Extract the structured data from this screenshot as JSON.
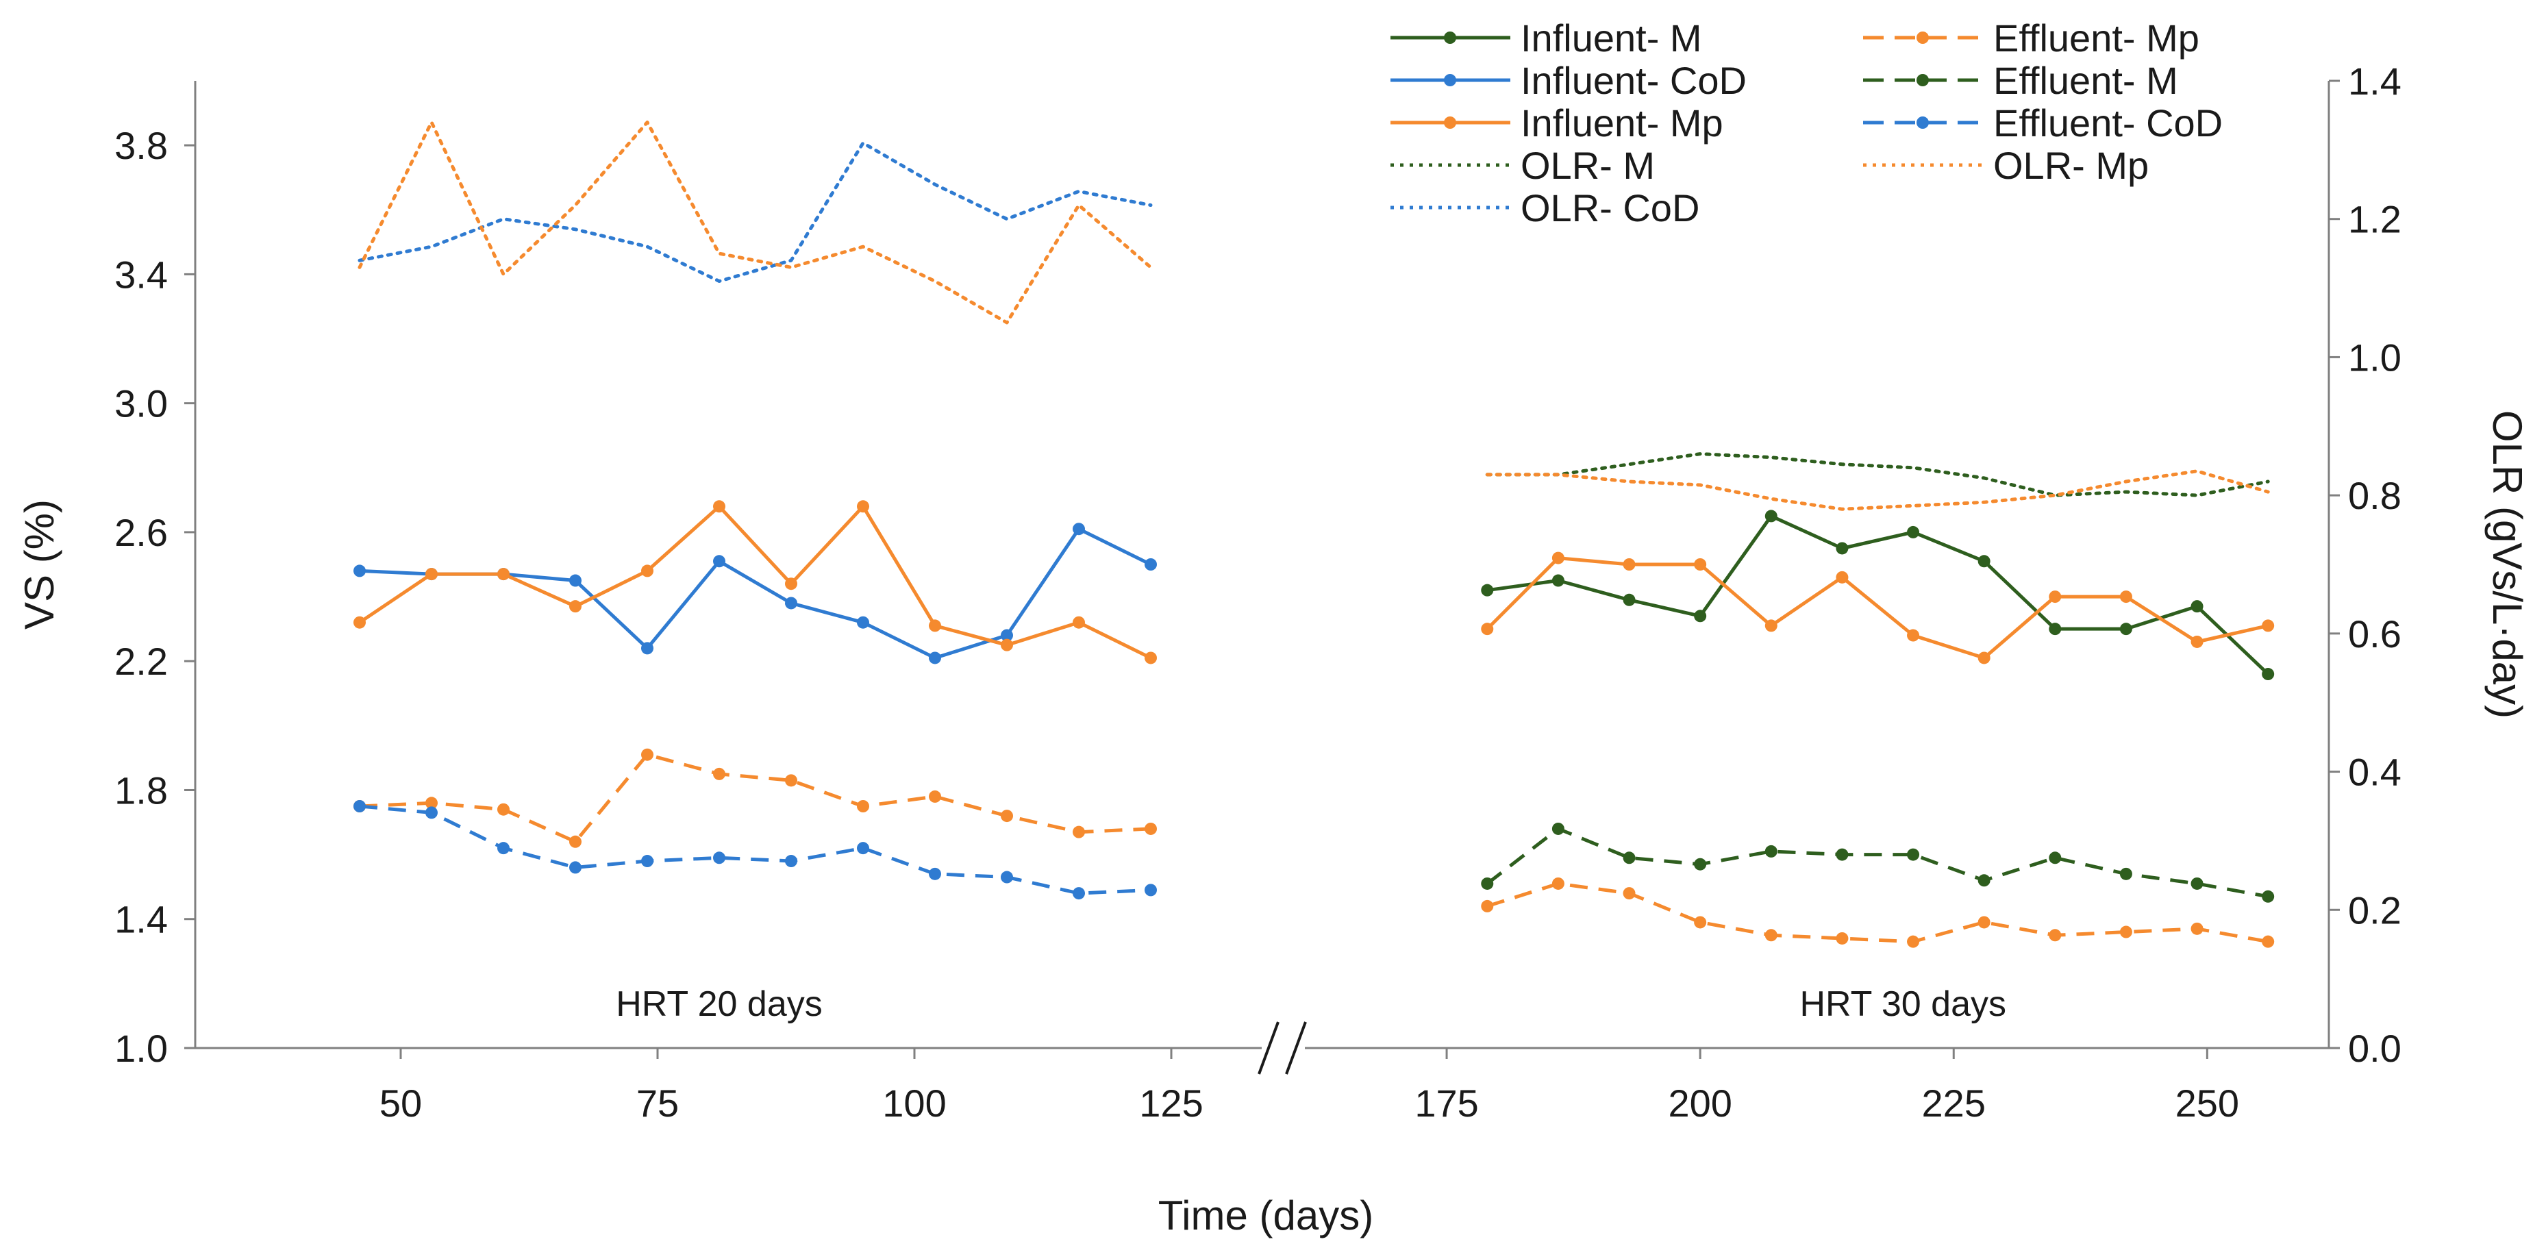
{
  "chart_data": {
    "type": "line",
    "xlabel": "Time (days)",
    "ylabel": "VS (%)",
    "y2label": "OLR (gVs/L·day)",
    "ylim": [
      1.0,
      4.0
    ],
    "y2lim": [
      0.0,
      1.4
    ],
    "grid": false,
    "legend_position": "top-right",
    "axis_break": "between 125 and 175",
    "colors": {
      "green": "#2e5e1e",
      "blue": "#2f7bd1",
      "orange": "#f58a2e",
      "axis": "#808080",
      "text": "#1a1a1a"
    },
    "segments": [
      {
        "name": "left",
        "x_range": [
          30,
          135
        ],
        "xticks": [
          50,
          75,
          100,
          125
        ]
      },
      {
        "name": "right",
        "x_range": [
          160,
          262
        ],
        "xticks": [
          175,
          200,
          225,
          250
        ]
      }
    ],
    "y_ticks": [
      "1.0",
      "1.4",
      "1.8",
      "2.2",
      "2.6",
      "3.0",
      "3.4",
      "3.8"
    ],
    "y2_ticks": [
      "0.0",
      "0.2",
      "0.4",
      "0.6",
      "0.8",
      "1.0",
      "1.2",
      "1.4"
    ],
    "annotations": [
      {
        "text": "HRT 20 days",
        "x": 81,
        "y": 1.1
      },
      {
        "text": "HRT 30 days",
        "x": 220,
        "y": 1.1
      }
    ],
    "series": [
      {
        "name": "Influent- M",
        "axis": "left",
        "style": "solid",
        "marker": "dot",
        "color": "#2e5e1e",
        "x": [
          179,
          186,
          193,
          200,
          207,
          214,
          221,
          228,
          235,
          242,
          249,
          256
        ],
        "values": [
          2.42,
          2.45,
          2.39,
          2.34,
          2.65,
          2.55,
          2.6,
          2.51,
          2.3,
          2.3,
          2.37,
          2.16
        ]
      },
      {
        "name": "Influent- CoD",
        "axis": "left",
        "style": "solid",
        "marker": "dot",
        "color": "#2f7bd1",
        "x": [
          46,
          53,
          60,
          67,
          74,
          81,
          88,
          95,
          102,
          109,
          116,
          123
        ],
        "values": [
          2.48,
          2.47,
          2.47,
          2.45,
          2.24,
          2.51,
          2.38,
          2.32,
          2.21,
          2.28,
          2.61,
          2.5
        ]
      },
      {
        "name": "Influent- Mp",
        "axis": "left",
        "style": "solid",
        "marker": "dot",
        "color": "#f58a2e",
        "x": [
          46,
          53,
          60,
          67,
          74,
          81,
          88,
          95,
          102,
          109,
          116,
          123,
          179,
          186,
          193,
          200,
          207,
          214,
          221,
          228,
          235,
          242,
          249,
          256
        ],
        "values": [
          2.32,
          2.47,
          2.47,
          2.37,
          2.48,
          2.68,
          2.44,
          2.68,
          2.31,
          2.25,
          2.32,
          2.21,
          2.3,
          2.52,
          2.5,
          2.5,
          2.31,
          2.46,
          2.28,
          2.21,
          2.4,
          2.4,
          2.26,
          2.31
        ]
      },
      {
        "name": "OLR- M",
        "axis": "right",
        "style": "dotted",
        "marker": "none",
        "color": "#2e5e1e",
        "x": [
          179,
          186,
          193,
          200,
          207,
          214,
          221,
          228,
          235,
          242,
          249,
          256
        ],
        "values": [
          0.83,
          0.83,
          0.845,
          0.86,
          0.855,
          0.845,
          0.84,
          0.825,
          0.8,
          0.805,
          0.8,
          0.82
        ]
      },
      {
        "name": "OLR- CoD",
        "axis": "right",
        "style": "dotted",
        "marker": "none",
        "color": "#2f7bd1",
        "x": [
          46,
          53,
          60,
          67,
          74,
          81,
          88,
          95,
          102,
          109,
          116,
          123
        ],
        "values": [
          1.14,
          1.16,
          1.2,
          1.185,
          1.16,
          1.11,
          1.14,
          1.31,
          1.25,
          1.2,
          1.24,
          1.22
        ]
      },
      {
        "name": "Effluent- Mp",
        "axis": "left",
        "style": "dashed",
        "marker": "dot",
        "color": "#f58a2e",
        "x": [
          46,
          53,
          60,
          67,
          74,
          81,
          88,
          95,
          102,
          109,
          116,
          123,
          179,
          186,
          193,
          200,
          207,
          214,
          221,
          228,
          235,
          242,
          249,
          256
        ],
        "values": [
          1.75,
          1.76,
          1.74,
          1.64,
          1.91,
          1.85,
          1.83,
          1.75,
          1.78,
          1.72,
          1.67,
          1.68,
          1.44,
          1.51,
          1.48,
          1.39,
          1.35,
          1.34,
          1.33,
          1.39,
          1.35,
          1.36,
          1.37,
          1.33
        ]
      },
      {
        "name": "Effluent- M",
        "axis": "left",
        "style": "dashed",
        "marker": "dot",
        "color": "#2e5e1e",
        "x": [
          179,
          186,
          193,
          200,
          207,
          214,
          221,
          228,
          235,
          242,
          249,
          256
        ],
        "values": [
          1.51,
          1.68,
          1.59,
          1.57,
          1.61,
          1.6,
          1.6,
          1.52,
          1.59,
          1.54,
          1.51,
          1.47
        ]
      },
      {
        "name": "Effluent- CoD",
        "axis": "left",
        "style": "dashed",
        "marker": "dot",
        "color": "#2f7bd1",
        "x": [
          46,
          53,
          60,
          67,
          74,
          81,
          88,
          95,
          102,
          109,
          116,
          123
        ],
        "values": [
          1.75,
          1.73,
          1.62,
          1.56,
          1.58,
          1.59,
          1.58,
          1.62,
          1.54,
          1.53,
          1.48,
          1.49
        ]
      },
      {
        "name": "OLR- Mp",
        "axis": "right",
        "style": "dotted",
        "marker": "none",
        "color": "#f58a2e",
        "x": [
          46,
          53,
          60,
          67,
          74,
          81,
          88,
          95,
          102,
          109,
          116,
          123,
          179,
          186,
          193,
          200,
          207,
          214,
          221,
          228,
          235,
          242,
          249,
          256
        ],
        "values": [
          1.13,
          1.34,
          1.12,
          1.22,
          1.34,
          1.15,
          1.13,
          1.16,
          1.11,
          1.05,
          1.22,
          1.13,
          0.83,
          0.83,
          0.82,
          0.815,
          0.795,
          0.78,
          0.785,
          0.79,
          0.8,
          0.82,
          0.835,
          0.805
        ]
      }
    ]
  }
}
